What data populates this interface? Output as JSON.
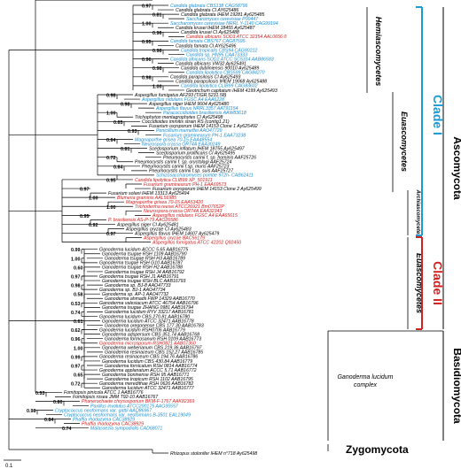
{
  "colors": {
    "black": "#000000",
    "blue": "#1a8fd6",
    "red": "#d42020",
    "clade_blue": "#1a9bd8"
  },
  "scale_label": "0.1",
  "groups": {
    "hemiascomycetes": "Hemiascomycetes",
    "euascomycetes_top": "Euascomycetes",
    "archiascomycetes": "Archiascomycetes",
    "euascomycetes_bottom": "Euascomycetes",
    "clade_1": "Clade I",
    "clade_2": "Clade II",
    "ascomycota": "Ascomycota",
    "basidiomycota": "Basidiomycota",
    "zygomycota": "Zygomycota",
    "ganoderma_complex_1": "Ganoderma lucidum",
    "ganoderma_complex_2": "complex"
  },
  "taxa": [
    {
      "text": "Candida glabrata CBS138 CAG58796",
      "c": "blue"
    },
    {
      "text": "Candida glabrata CI AY625486",
      "c": "black"
    },
    {
      "text": "Candida glabrata IHEM 19281 Ay625485",
      "c": "black"
    },
    {
      "text": "Saccharomyces cerevisiae P00447",
      "c": "blue"
    },
    {
      "text": "Saccharomyces cerevisiae NRRL Y-1140 CAG99194",
      "c": "blue"
    },
    {
      "text": "Candida krusei IHEM 18455 Ay625487",
      "c": "black"
    },
    {
      "text": "Candida krusei CI Ay625488",
      "c": "black"
    },
    {
      "text": "Candida albicans SOD3 ATCC 32354 AAL0656 0",
      "c": "red"
    },
    {
      "text": "Candida famata CBS767 CAG87595",
      "c": "blue"
    },
    {
      "text": "Candida famata CI AY625496",
      "c": "black"
    },
    {
      "text": "Candida tropicalis CBS94 CAG90212",
      "c": "blue"
    },
    {
      "text": "Candida sp. HN95 CAA73333",
      "c": "blue"
    },
    {
      "text": "Candida albicans SOD2 ATCC SC5314 AAB86583",
      "c": "blue"
    },
    {
      "text": "Candida albicans VW32 Ay625491",
      "c": "black"
    },
    {
      "text": "Candida dubliniensis 90010 Ay625489",
      "c": "black"
    },
    {
      "text": "Candida lipolytica CBS599 CAG84270",
      "c": "blue"
    },
    {
      "text": "Candida parapsilosis CI Ay625493",
      "c": "black"
    },
    {
      "text": "Candida parapsilosis IHEM 19068 Ay625488",
      "c": "black"
    },
    {
      "text": "Candida lipolytica CLIB99 CAG83602",
      "c": "blue"
    },
    {
      "text": "Geotrichum capitatum IHEM 4199 Ay625493",
      "c": "black"
    },
    {
      "text": "Aspergillus fumigatus AF293 (TIGR.5231.58)",
      "c": "black"
    },
    {
      "text": "Aspergillus nidulans FGSC A4 EAA6228",
      "c": "blue"
    },
    {
      "text": "Aspergillus niger IHEM 9604 Ay625480",
      "c": "black"
    },
    {
      "text": "Aspergillus flavus NRRL3357 AAT91154",
      "c": "blue"
    },
    {
      "text": "Paracoccidioides brasiliensis AAW83618",
      "c": "blue"
    },
    {
      "text": "Trichophyton mentagrophytes CI Ay625498",
      "c": "black"
    },
    {
      "text": "Coccidioides immitis strain RS (contig1.21)",
      "c": "black"
    },
    {
      "text": "Fusarium oxysporum IHEM 14153 Clone 1 Ay625492",
      "c": "black"
    },
    {
      "text": "Penicillium marneffei AAO47729",
      "c": "blue"
    },
    {
      "text": "Fusarium graminearum PH-1 EAA73238",
      "c": "blue"
    },
    {
      "text": "Magnaporthe grisea 70-15 EAA48554",
      "c": "blue"
    },
    {
      "text": "Neurospora crassa OR74A EAA30249",
      "c": "blue"
    },
    {
      "text": "Scedosporium inflatum IHEM 18755 Ay625497",
      "c": "black"
    },
    {
      "text": "Scedosporium prolificans CI Ay625495",
      "c": "black"
    },
    {
      "text": "Pneumocystis carinii f. sp. hominis AAF25726",
      "c": "black"
    },
    {
      "text": "Pneumocystis carinii f. sp. oryctolagi AAF25724",
      "c": "black"
    },
    {
      "text": "Pneumocystis carinii f.sp. muris AAF25723",
      "c": "black"
    },
    {
      "text": "Pneumocystis carinii f.sp. suis AAF25727",
      "c": "black"
    },
    {
      "text": "Schizosaccharomyces pombe 972h- CAB62411",
      "c": "blue"
    },
    {
      "text": "Candida lipolytica CLIB99 XP_501911",
      "c": "red"
    },
    {
      "text": "Fusarium graminearum PH-1 EAA69573",
      "c": "red"
    },
    {
      "text": "Fusarium oxysporum IHEM 14153 Clone 2 Ay625499",
      "c": "black"
    },
    {
      "text": "Fusarium solani IHEM 13313 Ay625494",
      "c": "black"
    },
    {
      "text": "Blumeria graminis AAL56985",
      "c": "red"
    },
    {
      "text": "Magnaporthe grisea 70-15 EAA53420",
      "c": "red"
    },
    {
      "text": "Trichoderma reesei ATCC26921 Bm07652P",
      "c": "red"
    },
    {
      "text": "Neurospora crassa OR74A EAA32343",
      "c": "red"
    },
    {
      "text": "Aspergillus nidulans FGSC A4 EAA65615",
      "c": "red"
    },
    {
      "text": "P. brasiliensis AS-P-79 AAO26586",
      "c": "red"
    },
    {
      "text": "Aspergillus niger CI Ay625481",
      "c": "black"
    },
    {
      "text": "Aspergillus oryzae CI Ay625483",
      "c": "black"
    },
    {
      "text": "Aspergillus flavus IHEM 14607 Ay625479",
      "c": "black"
    },
    {
      "text": "Aspergillus oryzae BAC56179",
      "c": "red"
    },
    {
      "text": "Aspergillus fumigatus ATCC 42202 Q92450",
      "c": "red"
    },
    {
      "text": "Ganoderma lucidum ACCC 5.65 AAB16775",
      "c": "black"
    },
    {
      "text": "Ganoderma tsugae RSH 1109 AAB16790",
      "c": "black"
    },
    {
      "text": "Ganoderma tsugae RSH H3 AAB16789",
      "c": "black"
    },
    {
      "text": "Ganoderma tsugae RSH G10 AAB16787",
      "c": "black"
    },
    {
      "text": "Ganoderma tsugae RSH H2 AAB16788",
      "c": "black"
    },
    {
      "text": "Ganoderma tsugae RSH J4 AAB16792",
      "c": "black"
    },
    {
      "text": "Ganoderma tsugae RSH J1 AAB16791",
      "c": "black"
    },
    {
      "text": "Ganoderma tsugae RSH BLC AAB16793",
      "c": "black"
    },
    {
      "text": "Ganoderma sp. BJ-8 AAO47733",
      "c": "black"
    },
    {
      "text": "Ganoderma sp. BJ-1 AAO47734",
      "c": "black"
    },
    {
      "text": "Ganoderma sp. AP-1 AAO47732",
      "c": "black"
    },
    {
      "text": "Ganoderma ahmadii FWP 14329 AAB16770",
      "c": "black"
    },
    {
      "text": "Ganoderma valesiacum ATCC 46754 AAB16796",
      "c": "black"
    },
    {
      "text": "Ganoderma tsugae ZHANG 0981 AAB16794",
      "c": "black"
    },
    {
      "text": "Ganoderma lucidum RYV 33217 AAB16781",
      "c": "black"
    },
    {
      "text": "Ganoderma lucidum CBS 270.81 AAB16780",
      "c": "black"
    },
    {
      "text": "Ganoderma lucidum ATCC 32471 AAB16778",
      "c": "black"
    },
    {
      "text": "Ganoderma oregonense CBS 177.30 AAB16783",
      "c": "black"
    },
    {
      "text": "Ganoderma lucidum RSH0706 AAB16779",
      "c": "black"
    },
    {
      "text": "Ganoderma adspersum CBS 351.74 AAB16768",
      "c": "black"
    },
    {
      "text": "Ganoderma formosanum RSH 0109 AAB16773",
      "c": "black"
    },
    {
      "text": "Ganoderma microsporum RSH0821 AAB07360",
      "c": "red"
    },
    {
      "text": "Ganoderma weberianum CBS 219.36 AAB16797",
      "c": "black"
    },
    {
      "text": "Ganoderma resinaceum CBS 152.27 AAB16785",
      "c": "black"
    },
    {
      "text": "Ganoderma resinaceum CBS 194.76 AAB16786",
      "c": "black"
    },
    {
      "text": "Ganoderma lucidum CBS 430.84 AAB16779",
      "c": "black"
    },
    {
      "text": "Ganoderma fornicatum RSH 0814 AAB16774",
      "c": "black"
    },
    {
      "text": "Ganoderma applanatum ACCC 5.71 AAB16772",
      "c": "black"
    },
    {
      "text": "Ganoderma boninense RSH 95 AAB16771",
      "c": "black"
    },
    {
      "text": "Ganoderma tropicum RSH 1102 AAB16795",
      "c": "black"
    },
    {
      "text": "Ganoderma meredithae RSH 0626 AAB16782",
      "c": "black"
    },
    {
      "text": "Ganoderma lucidum ATCC 32471 AAB16777",
      "c": "black"
    },
    {
      "text": "Fomitopsis pinicola ATCC 1 AAB16776",
      "c": "black"
    },
    {
      "text": "Fomitopsis rosea JMM T92-10 AAB16767",
      "c": "black"
    },
    {
      "text": "Phanerochaete chrysosporium BKM-F-1767 AAK82369",
      "c": "red"
    },
    {
      "text": "Paxillus involutus ATCC200175 AAO35557",
      "c": "blue"
    },
    {
      "text": "Cryptococcus neoformans var. gattii AAQ86967",
      "c": "blue"
    },
    {
      "text": "Cryptococcus neoformans var. neoformans B-3501 EAL19049",
      "c": "blue"
    },
    {
      "text": "Phaffia rhodozyma CAC38929",
      "c": "blue"
    },
    {
      "text": "Phaffia rhodozyma CAC38929",
      "c": "red"
    },
    {
      "text": "Malassezia sympodialis CAD68071",
      "c": "blue"
    },
    {
      "text": "Rhizopus stolonifer IHEM n°718 Ay625498",
      "c": "black"
    }
  ],
  "bootstrap": [
    {
      "v": "0.97"
    },
    {
      "v": "0.81"
    },
    {
      "v": "1.00"
    },
    {
      "v": "0.96"
    },
    {
      "v": "0.95"
    },
    {
      "v": "0.98"
    },
    {
      "v": "0.96"
    },
    {
      "v": "0.98"
    },
    {
      "v": "0.98"
    },
    {
      "v": "1.00"
    },
    {
      "v": "0.98"
    },
    {
      "v": "0.98"
    },
    {
      "v": "1.00"
    },
    {
      "v": "0.65"
    },
    {
      "v": "0.93"
    },
    {
      "v": "0.64"
    },
    {
      "v": "0.81"
    },
    {
      "v": "0.72"
    },
    {
      "v": "0.64"
    },
    {
      "v": "0.95"
    },
    {
      "v": "0.97"
    },
    {
      "v": "1.00"
    },
    {
      "v": "1.00"
    },
    {
      "v": "0.95"
    },
    {
      "v": "0.92"
    },
    {
      "v": "0.97"
    },
    {
      "v": "0.99"
    },
    {
      "v": "1.00"
    },
    {
      "v": "0.60"
    },
    {
      "v": "0.97"
    },
    {
      "v": "0.98"
    },
    {
      "v": "0.58"
    },
    {
      "v": "0.53"
    },
    {
      "v": "0.74"
    },
    {
      "v": "0.61"
    },
    {
      "v": "0.62"
    },
    {
      "v": "0.96"
    },
    {
      "v": "1.00"
    },
    {
      "v": "0.99"
    },
    {
      "v": "0.97"
    },
    {
      "v": "0.65"
    },
    {
      "v": "0.72"
    },
    {
      "v": "0.53"
    },
    {
      "v": "0.80"
    },
    {
      "v": "0.98"
    },
    {
      "v": "0.84"
    },
    {
      "v": "0.74"
    },
    {
      "v": "0.97"
    }
  ]
}
